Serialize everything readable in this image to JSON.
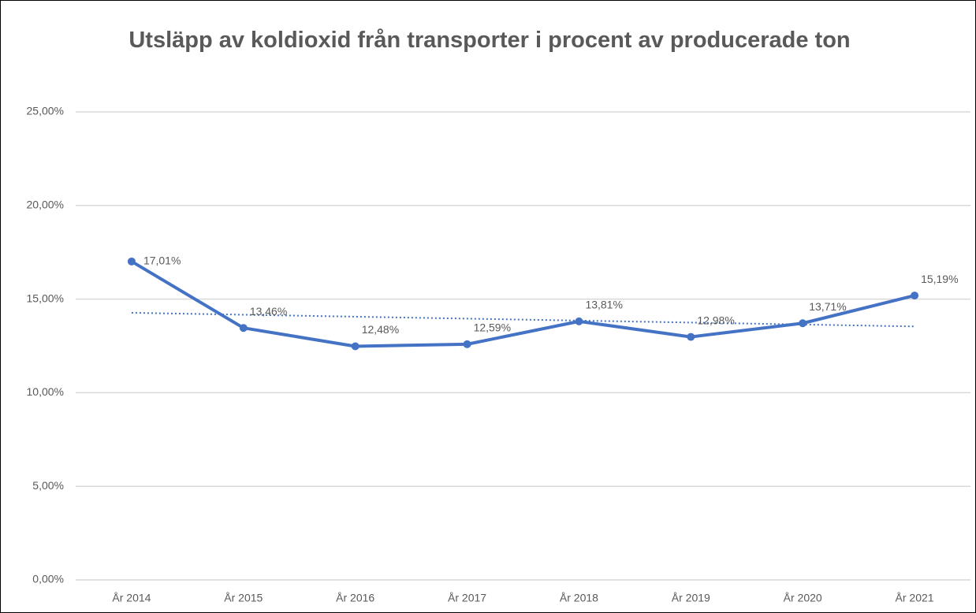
{
  "chart_data": {
    "type": "line",
    "title": "Utsläpp av koldioxid från transporter i procent av producerade ton",
    "categories": [
      "År 2014",
      "År 2015",
      "År 2016",
      "År 2017",
      "År 2018",
      "År 2019",
      "År 2020",
      "År 2021"
    ],
    "series": [
      {
        "name": "Utsläpp",
        "color": "#4472c4",
        "values": [
          17.01,
          13.46,
          12.48,
          12.59,
          13.81,
          12.98,
          13.71,
          15.19
        ],
        "value_labels": [
          "17,01%",
          "13,46%",
          "12,48%",
          "12,59%",
          "13,81%",
          "12,98%",
          "13,71%",
          "15,19%"
        ]
      }
    ],
    "ylim": [
      0,
      25
    ],
    "yticks": [
      {
        "value": 0,
        "label": "0,00%"
      },
      {
        "value": 5,
        "label": "5,00%"
      },
      {
        "value": 10,
        "label": "10,00%"
      },
      {
        "value": 15,
        "label": "15,00%"
      },
      {
        "value": 20,
        "label": "20,00%"
      },
      {
        "value": 25,
        "label": "25,00%"
      }
    ],
    "grid": true,
    "trendline": "linear"
  }
}
